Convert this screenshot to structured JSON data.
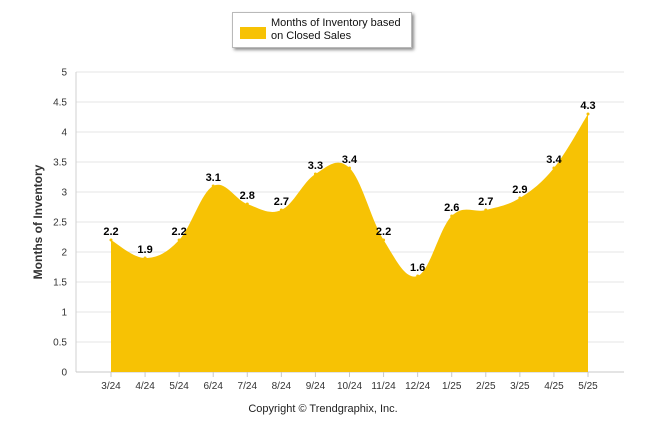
{
  "legend": {
    "label": "Months of Inventory based on Closed Sales",
    "color": "#f7c204"
  },
  "footer": {
    "copyright": "Copyright © Trendgraphix, Inc."
  },
  "chart_data": {
    "type": "area",
    "title": "",
    "xlabel": "",
    "ylabel": "Months of Inventory",
    "ylim": [
      0,
      5
    ],
    "yticks": [
      "0",
      "0.5",
      "1",
      "1.5",
      "2",
      "2.5",
      "3",
      "3.5",
      "4",
      "4.5",
      "5"
    ],
    "grid": true,
    "legend_position": "top-center",
    "categories": [
      "3/24",
      "4/24",
      "5/24",
      "6/24",
      "7/24",
      "8/24",
      "9/24",
      "10/24",
      "11/24",
      "12/24",
      "1/25",
      "2/25",
      "3/25",
      "4/25",
      "5/25"
    ],
    "series": [
      {
        "name": "Months of Inventory based on Closed Sales",
        "values": [
          2.2,
          1.9,
          2.2,
          3.1,
          2.8,
          2.7,
          3.3,
          3.4,
          2.2,
          1.6,
          2.6,
          2.7,
          2.9,
          3.4,
          4.3
        ],
        "labels": [
          "2.2",
          "1.9",
          "2.2",
          "3.1",
          "2.8",
          "2.7",
          "3.3",
          "3.4",
          "2.2",
          "1.6",
          "2.6",
          "2.7",
          "2.9",
          "3.4",
          "4.3"
        ],
        "color": "#f7c204"
      }
    ]
  }
}
